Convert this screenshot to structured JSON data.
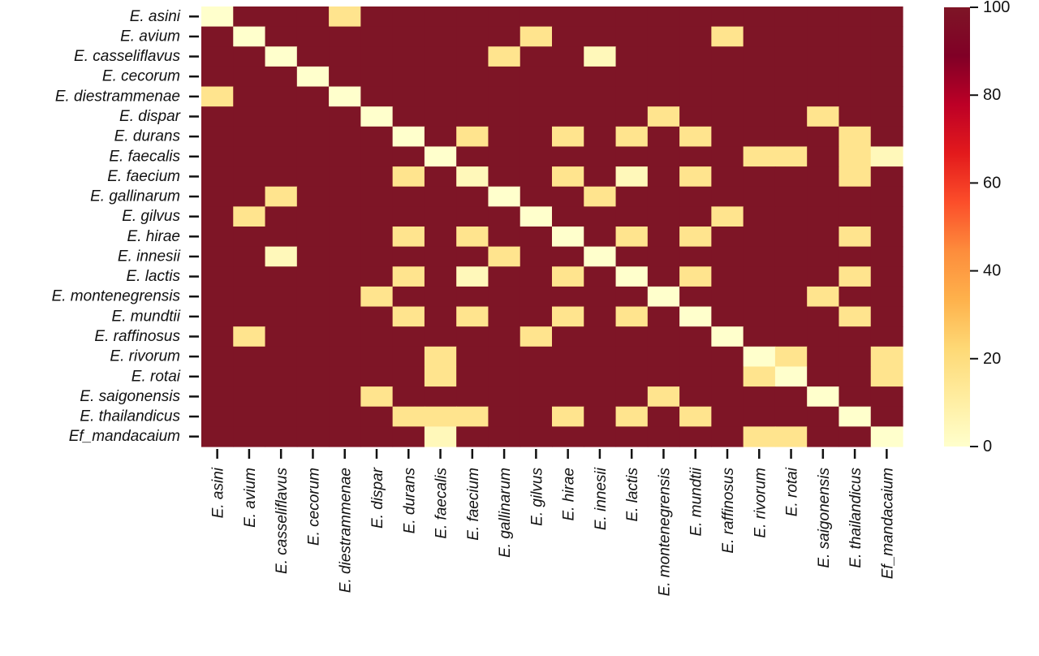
{
  "chart_data": {
    "type": "heatmap",
    "title": "",
    "xlabel": "",
    "ylabel": "",
    "species": [
      "E. asini",
      "E. avium",
      "E. casseliflavus",
      "E. cecorum",
      "E. diestrammenae",
      "E. dispar",
      "E. durans",
      "E. faecalis",
      "E. faecium",
      "E. gallinarum",
      "E. gilvus",
      "E. hirae",
      "E. innesii",
      "E. lactis",
      "E. montenegrensis",
      "E. mundtii",
      "E. raffinosus",
      "E. rivorum",
      "E. rotai",
      "E. saigonensis",
      "E. thailandicus",
      "Ef_mandacaium"
    ],
    "colorbar": {
      "ticks": [
        0,
        20,
        40,
        60,
        80,
        100
      ],
      "range": [
        0,
        100
      ]
    },
    "colors": {
      "scale": [
        "#ffffcc",
        "#ffeda0",
        "#fed976",
        "#feb24c",
        "#fd8d3c",
        "#fc4e2a",
        "#e31a1c",
        "#bd0026",
        "#800026"
      ],
      "high": "#7e1526"
    },
    "default_value": 100,
    "values": [
      [
        0,
        100,
        100,
        100,
        18,
        100,
        100,
        100,
        100,
        100,
        100,
        100,
        100,
        100,
        100,
        100,
        100,
        100,
        100,
        100,
        100,
        100
      ],
      [
        100,
        0,
        100,
        100,
        100,
        100,
        100,
        100,
        100,
        100,
        18,
        100,
        100,
        100,
        100,
        100,
        18,
        100,
        100,
        100,
        100,
        100
      ],
      [
        100,
        100,
        0,
        100,
        100,
        100,
        100,
        100,
        100,
        18,
        100,
        100,
        5,
        100,
        100,
        100,
        100,
        100,
        100,
        100,
        100,
        100
      ],
      [
        100,
        100,
        100,
        0,
        100,
        100,
        100,
        100,
        100,
        100,
        100,
        100,
        100,
        100,
        100,
        100,
        100,
        100,
        100,
        100,
        100,
        100
      ],
      [
        18,
        100,
        100,
        100,
        0,
        100,
        100,
        100,
        100,
        100,
        100,
        100,
        100,
        100,
        100,
        100,
        100,
        100,
        100,
        100,
        100,
        100
      ],
      [
        100,
        100,
        100,
        100,
        100,
        0,
        100,
        100,
        100,
        100,
        100,
        100,
        100,
        100,
        18,
        100,
        100,
        100,
        100,
        18,
        100,
        100
      ],
      [
        100,
        100,
        100,
        100,
        100,
        100,
        0,
        100,
        18,
        100,
        100,
        18,
        100,
        18,
        100,
        18,
        100,
        100,
        100,
        100,
        18,
        100
      ],
      [
        100,
        100,
        100,
        100,
        100,
        100,
        100,
        0,
        100,
        100,
        100,
        100,
        100,
        100,
        100,
        100,
        100,
        18,
        18,
        100,
        18,
        5
      ],
      [
        100,
        100,
        100,
        100,
        100,
        100,
        18,
        100,
        5,
        100,
        100,
        18,
        100,
        5,
        100,
        18,
        100,
        100,
        100,
        100,
        18,
        100
      ],
      [
        100,
        100,
        18,
        100,
        100,
        100,
        100,
        100,
        100,
        0,
        100,
        100,
        18,
        100,
        100,
        100,
        100,
        100,
        100,
        100,
        100,
        100
      ],
      [
        100,
        18,
        100,
        100,
        100,
        100,
        100,
        100,
        100,
        100,
        0,
        100,
        100,
        100,
        100,
        100,
        18,
        100,
        100,
        100,
        100,
        100
      ],
      [
        100,
        100,
        100,
        100,
        100,
        100,
        18,
        100,
        18,
        100,
        100,
        0,
        100,
        18,
        100,
        18,
        100,
        100,
        100,
        100,
        18,
        100
      ],
      [
        100,
        100,
        5,
        100,
        100,
        100,
        100,
        100,
        100,
        18,
        100,
        100,
        0,
        100,
        100,
        100,
        100,
        100,
        100,
        100,
        100,
        100
      ],
      [
        100,
        100,
        100,
        100,
        100,
        100,
        18,
        100,
        5,
        100,
        100,
        18,
        100,
        0,
        100,
        18,
        100,
        100,
        100,
        100,
        18,
        100
      ],
      [
        100,
        100,
        100,
        100,
        100,
        18,
        100,
        100,
        100,
        100,
        100,
        100,
        100,
        100,
        0,
        100,
        100,
        100,
        100,
        18,
        100,
        100
      ],
      [
        100,
        100,
        100,
        100,
        100,
        100,
        18,
        100,
        18,
        100,
        100,
        18,
        100,
        18,
        100,
        0,
        100,
        100,
        100,
        100,
        18,
        100
      ],
      [
        100,
        18,
        100,
        100,
        100,
        100,
        100,
        100,
        100,
        100,
        18,
        100,
        100,
        100,
        100,
        100,
        0,
        100,
        100,
        100,
        100,
        100
      ],
      [
        100,
        100,
        100,
        100,
        100,
        100,
        100,
        18,
        100,
        100,
        100,
        100,
        100,
        100,
        100,
        100,
        100,
        0,
        18,
        100,
        100,
        18
      ],
      [
        100,
        100,
        100,
        100,
        100,
        100,
        100,
        18,
        100,
        100,
        100,
        100,
        100,
        100,
        100,
        100,
        100,
        18,
        0,
        100,
        100,
        18
      ],
      [
        100,
        100,
        100,
        100,
        100,
        18,
        100,
        100,
        100,
        100,
        100,
        100,
        100,
        100,
        18,
        100,
        100,
        100,
        100,
        0,
        100,
        100
      ],
      [
        100,
        100,
        100,
        100,
        100,
        100,
        18,
        18,
        18,
        100,
        100,
        18,
        100,
        18,
        100,
        18,
        100,
        100,
        100,
        100,
        0,
        100
      ],
      [
        100,
        100,
        100,
        100,
        100,
        100,
        100,
        5,
        100,
        100,
        100,
        100,
        100,
        100,
        100,
        100,
        100,
        18,
        18,
        100,
        100,
        0
      ]
    ]
  }
}
